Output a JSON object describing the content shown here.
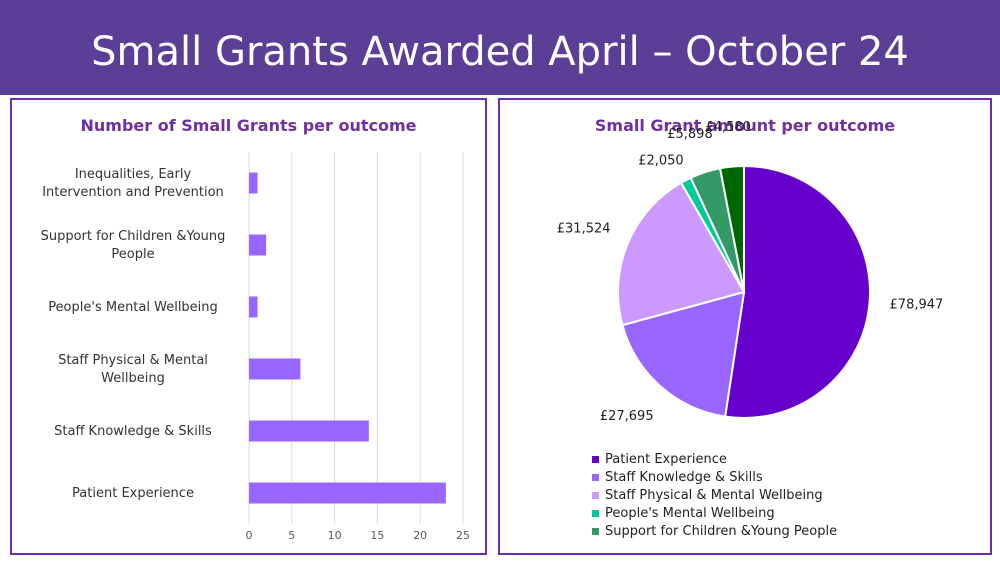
{
  "slide": {
    "title": "Small Grants Awarded April – October 24"
  },
  "chart_data": [
    {
      "type": "bar",
      "orientation": "horizontal",
      "title": "Number of Small Grants per outcome",
      "categories": [
        "Inequalities, Early Intervention and Prevention",
        "Support for Children &Young People",
        "People's Mental Wellbeing",
        "Staff Physical & Mental Wellbeing",
        "Staff Knowledge & Skills",
        "Patient Experience"
      ],
      "values": [
        1,
        2,
        1,
        6,
        14,
        23
      ],
      "xlim": [
        0,
        25
      ],
      "xticks": [
        0,
        5,
        10,
        15,
        20,
        25
      ],
      "grid": "vertical",
      "bar_color": "#9966ff"
    },
    {
      "type": "pie",
      "title": "Small Grant amount per outcome",
      "slices": [
        {
          "label": "Patient Experience",
          "value": 78947,
          "display": "£78,947",
          "color": "#6600cc"
        },
        {
          "label": "Staff Knowledge & Skills",
          "value": 27695,
          "display": "£27,695",
          "color": "#9966ff"
        },
        {
          "label": "Staff Physical & Mental Wellbeing",
          "value": 31524,
          "display": "£31,524",
          "color": "#cc99ff"
        },
        {
          "label": "People's Mental Wellbeing",
          "value": 2050,
          "display": "£2,050",
          "color": "#00cc99"
        },
        {
          "label": "Support for Children &Young People",
          "value": 5898,
          "display": "£5,898",
          "color": "#339966"
        },
        {
          "label": "Inequalities, Early Intervention and Prevention",
          "value": 4580,
          "display": "£4,580",
          "color": "#006600"
        }
      ],
      "legend_position": "bottom-left",
      "legend_entries": [
        {
          "label": "Patient Experience",
          "color": "#6600cc"
        },
        {
          "label": "Staff Knowledge & Skills",
          "color": "#9966ff"
        },
        {
          "label": "Staff Physical & Mental Wellbeing",
          "color": "#cc99ff"
        },
        {
          "label": "People's Mental Wellbeing",
          "color": "#00cc99"
        },
        {
          "label": "Support for Children &Young People",
          "color": "#339966"
        }
      ]
    }
  ]
}
